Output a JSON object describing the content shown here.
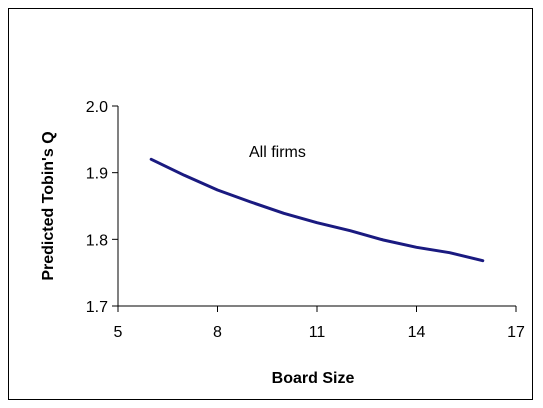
{
  "chart_data": {
    "type": "line",
    "title": "",
    "xlabel": "Board Size",
    "ylabel": "Predicted Tobin's Q",
    "xlim": [
      5,
      17
    ],
    "ylim": [
      1.7,
      2.0
    ],
    "xticks": [
      5,
      8,
      11,
      14,
      17
    ],
    "xtick_labels": [
      "5",
      "8",
      "11",
      "14",
      "17"
    ],
    "yticks": [
      1.7,
      1.8,
      1.9,
      2.0
    ],
    "ytick_labels": [
      "1.7",
      "1.8",
      "1.9",
      "2.0"
    ],
    "grid": false,
    "legend": "none",
    "annotation": "All firms",
    "series": [
      {
        "color": "#1a1a80",
        "x": [
          6,
          7,
          8,
          9,
          10,
          11,
          12,
          13,
          14,
          15,
          16
        ],
        "y": [
          1.92,
          1.896,
          1.874,
          1.856,
          1.839,
          1.825,
          1.813,
          1.799,
          1.788,
          1.78,
          1.768
        ]
      }
    ]
  }
}
